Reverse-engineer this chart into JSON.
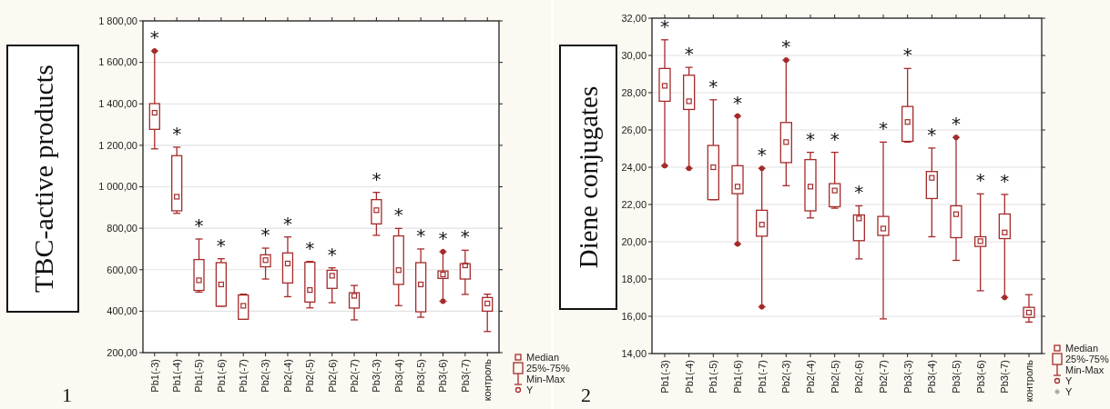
{
  "chart_data": [
    {
      "type": "box",
      "ylabel": "TBC-active products",
      "color": "#a52a2a",
      "grid": "y",
      "categories": [
        "Pb1(-3)",
        "Pb1(-4)",
        "Pb1(-5)",
        "Pb1(-6)",
        "Pb1(-7)",
        "Pb2(-3)",
        "Pb2(-4)",
        "Pb2(-5)",
        "Pb2(-6)",
        "Pb2(-7)",
        "Pb3(-3)",
        "Pb3(-4)",
        "Pb3(-5)",
        "Pb3(-6)",
        "Pb3(-7)",
        "контроль"
      ],
      "boxes": [
        {
          "low": 1183,
          "q1": 1277,
          "median": 1357,
          "q3": 1401,
          "high": 1655,
          "outliers": [
            1655
          ]
        },
        {
          "low": 872,
          "q1": 884,
          "median": 952,
          "q3": 1150,
          "high": 1191
        },
        {
          "low": 492,
          "q1": 500,
          "median": 549,
          "q3": 649,
          "high": 748
        },
        {
          "low": 424,
          "q1": 424,
          "median": 529,
          "q3": 634,
          "high": 653
        },
        {
          "low": 361,
          "q1": 361,
          "median": 426,
          "q3": 478,
          "high": 482
        },
        {
          "low": 555,
          "q1": 614,
          "median": 646,
          "q3": 672,
          "high": 704
        },
        {
          "low": 470,
          "q1": 536,
          "median": 630,
          "q3": 681,
          "high": 758
        },
        {
          "low": 416,
          "q1": 444,
          "median": 502,
          "q3": 636,
          "high": 640
        },
        {
          "low": 441,
          "q1": 510,
          "median": 571,
          "q3": 597,
          "high": 609
        },
        {
          "low": 358,
          "q1": 415,
          "median": 474,
          "q3": 489,
          "high": 524
        },
        {
          "low": 766,
          "q1": 821,
          "median": 887,
          "q3": 938,
          "high": 973
        },
        {
          "low": 427,
          "q1": 529,
          "median": 598,
          "q3": 763,
          "high": 799
        },
        {
          "low": 371,
          "q1": 397,
          "median": 529,
          "q3": 634,
          "high": 700
        },
        {
          "low": 448,
          "q1": 558,
          "median": 577,
          "q3": 594,
          "high": 687,
          "outliers": [
            687,
            448
          ]
        },
        {
          "low": 481,
          "q1": 555,
          "median": 621,
          "q3": 629,
          "high": 694
        },
        {
          "low": 302,
          "q1": 400,
          "median": 437,
          "q3": 466,
          "high": 482
        }
      ],
      "ylim": [
        200,
        1800
      ],
      "yticks": [
        {
          "value": 200,
          "label": "200,00"
        },
        {
          "value": 400,
          "label": "400,00"
        },
        {
          "value": 600,
          "label": "600,00"
        },
        {
          "value": 800,
          "label": "800,00"
        },
        {
          "value": 1000,
          "label": "1 000,00"
        },
        {
          "value": 1200,
          "label": "1 200,00"
        },
        {
          "value": 1400,
          "label": "1 400,00"
        },
        {
          "value": 1600,
          "label": "1 600,00"
        },
        {
          "value": 1800,
          "label": "1 800,00"
        }
      ],
      "annotations": [
        "1",
        "Median",
        "25%-75%",
        "Min-Max",
        "Y",
        {
          "text": "*",
          "x": "Pb1(-3)",
          "y": 1655
        },
        {
          "text": "*",
          "x": "Pb1(-4)",
          "y": 1191
        },
        {
          "text": "*",
          "x": "Pb1(-5)",
          "y": 748
        },
        {
          "text": "*",
          "x": "Pb1(-6)",
          "y": 653
        },
        {
          "text": "*",
          "x": "Pb2(-3)",
          "y": 704
        },
        {
          "text": "*",
          "x": "Pb2(-4)",
          "y": 758
        },
        {
          "text": "*",
          "x": "Pb2(-5)",
          "y": 640
        },
        {
          "text": "*",
          "x": "Pb2(-6)",
          "y": 609
        },
        {
          "text": "*",
          "x": "Pb3(-3)",
          "y": 973
        },
        {
          "text": "*",
          "x": "Pb3(-4)",
          "y": 799
        },
        {
          "text": "*",
          "x": "Pb3(-5)",
          "y": 700
        },
        {
          "text": "*",
          "x": "Pb3(-6)",
          "y": 687
        },
        {
          "text": "*",
          "x": "Pb3(-7)",
          "y": 694
        }
      ]
    },
    {
      "type": "box",
      "ylabel": "Diene conjugates",
      "color": "#a52a2a",
      "grid": "y",
      "categories": [
        "Pb1(-3)",
        "Pb1(-4)",
        "Pb1(-5)",
        "Pb1(-6)",
        "Pb1(-7)",
        "Pb2(-3)",
        "Pb2(-4)",
        "Pb2(-5)",
        "Pb2(-6)",
        "Pb2(-7)",
        "Pb3(-3)",
        "Pb3(-4)",
        "Pb3(-5)",
        "Pb3(-6)",
        "Pb3(-7)",
        "контроль"
      ],
      "boxes": [
        {
          "low": 24.08,
          "q1": 27.54,
          "median": 28.37,
          "q3": 29.3,
          "high": 30.84,
          "outliers": [
            24.08
          ]
        },
        {
          "low": 23.94,
          "q1": 27.1,
          "median": 27.54,
          "q3": 28.94,
          "high": 29.36,
          "outliers": [
            23.94
          ]
        },
        {
          "low": 22.26,
          "q1": 22.26,
          "median": 24.0,
          "q3": 25.17,
          "high": 27.62
        },
        {
          "low": 19.88,
          "q1": 22.58,
          "median": 22.96,
          "q3": 24.08,
          "high": 26.75,
          "outliers": [
            26.75,
            19.88
          ]
        },
        {
          "low": 16.51,
          "q1": 20.3,
          "median": 20.92,
          "q3": 21.69,
          "high": 23.94,
          "outliers": [
            23.94,
            16.51
          ]
        },
        {
          "low": 23.01,
          "q1": 24.25,
          "median": 25.35,
          "q3": 26.4,
          "high": 29.75,
          "outliers": [
            29.75
          ]
        },
        {
          "low": 21.28,
          "q1": 21.66,
          "median": 22.96,
          "q3": 24.41,
          "high": 24.8
        },
        {
          "low": 21.8,
          "q1": 21.88,
          "median": 22.75,
          "q3": 23.12,
          "high": 24.8
        },
        {
          "low": 19.08,
          "q1": 20.06,
          "median": 21.25,
          "q3": 21.44,
          "high": 21.93
        },
        {
          "low": 15.86,
          "q1": 20.34,
          "median": 20.71,
          "q3": 21.36,
          "high": 25.35
        },
        {
          "low": 25.35,
          "q1": 25.39,
          "median": 26.43,
          "q3": 27.26,
          "high": 29.3
        },
        {
          "low": 20.27,
          "q1": 22.32,
          "median": 23.43,
          "q3": 23.77,
          "high": 25.03
        },
        {
          "low": 19.0,
          "q1": 20.22,
          "median": 21.48,
          "q3": 21.93,
          "high": 25.6,
          "outliers": [
            25.6
          ]
        },
        {
          "low": 17.37,
          "q1": 19.75,
          "median": 20.03,
          "q3": 20.27,
          "high": 22.57
        },
        {
          "low": 17.01,
          "q1": 20.17,
          "median": 20.5,
          "q3": 21.49,
          "high": 22.54,
          "outliers": [
            17.01
          ]
        },
        {
          "low": 15.69,
          "q1": 15.94,
          "median": 16.2,
          "q3": 16.48,
          "high": 17.16
        }
      ],
      "ylim": [
        14,
        32
      ],
      "yticks": [
        {
          "value": 14,
          "label": "14,00"
        },
        {
          "value": 16,
          "label": "16,00"
        },
        {
          "value": 18,
          "label": "18,00"
        },
        {
          "value": 20,
          "label": "20,00"
        },
        {
          "value": 22,
          "label": "22,00"
        },
        {
          "value": 24,
          "label": "24,00"
        },
        {
          "value": 26,
          "label": "26,00"
        },
        {
          "value": 28,
          "label": "28,00"
        },
        {
          "value": 30,
          "label": "30,00"
        },
        {
          "value": 32,
          "label": "32,00"
        }
      ],
      "annotations": [
        "2",
        "Median",
        "25%-75%",
        "Min-Max",
        "Y",
        "Y",
        {
          "text": "*",
          "x": "Pb1(-3)",
          "y": 30.84
        },
        {
          "text": "*",
          "x": "Pb1(-4)",
          "y": 29.36
        },
        {
          "text": "*",
          "x": "Pb1(-5)",
          "y": 27.62
        },
        {
          "text": "*",
          "x": "Pb1(-6)",
          "y": 26.75
        },
        {
          "text": "*",
          "x": "Pb1(-7)",
          "y": 23.94
        },
        {
          "text": "*",
          "x": "Pb2(-3)",
          "y": 29.75
        },
        {
          "text": "*",
          "x": "Pb2(-4)",
          "y": 24.8
        },
        {
          "text": "*",
          "x": "Pb2(-5)",
          "y": 24.8
        },
        {
          "text": "*",
          "x": "Pb2(-6)",
          "y": 21.93
        },
        {
          "text": "*",
          "x": "Pb2(-7)",
          "y": 25.35
        },
        {
          "text": "*",
          "x": "Pb3(-3)",
          "y": 29.3
        },
        {
          "text": "*",
          "x": "Pb3(-4)",
          "y": 25.03
        },
        {
          "text": "*",
          "x": "Pb3(-5)",
          "y": 25.6
        },
        {
          "text": "*",
          "x": "Pb3(-6)",
          "y": 22.57
        },
        {
          "text": "*",
          "x": "Pb3(-7)",
          "y": 22.54
        }
      ]
    }
  ]
}
